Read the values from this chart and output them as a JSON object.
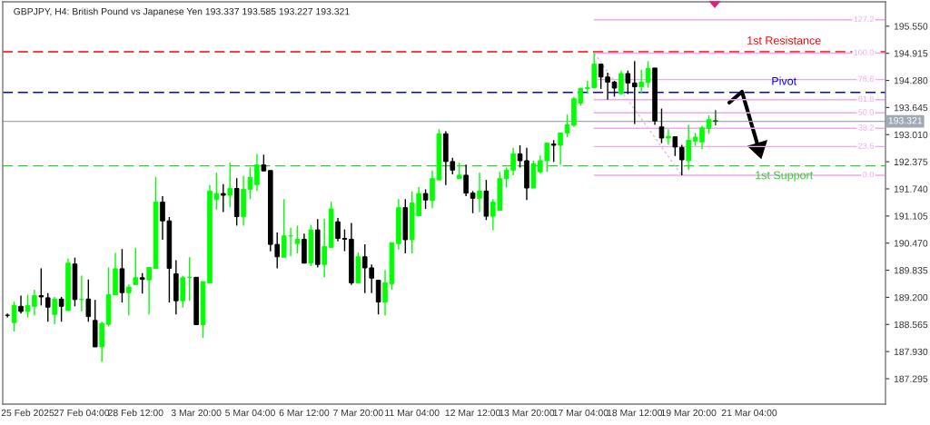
{
  "chart_data": {
    "type": "candlestick",
    "title": "GBPJPY, H4: British Pound vs Japanese Yen 193.337 193.585 193.227 193.321",
    "categories": [
      null,
      null,
      null,
      "25 Feb 2025",
      null,
      null,
      null,
      null,
      null,
      null,
      null,
      "27 Feb 04:00",
      null,
      null,
      null,
      null,
      null,
      null,
      null,
      "28 Feb 12:00",
      null,
      null,
      null,
      null,
      null,
      null,
      null,
      null,
      "3 Mar 20:00",
      null,
      null,
      null,
      null,
      null,
      null,
      null,
      "5 Mar 04:00",
      null,
      null,
      null,
      null,
      null,
      null,
      null,
      "6 Mar 12:00",
      null,
      null,
      null,
      null,
      null,
      null,
      null,
      "7 Mar 20:00",
      null,
      null,
      null,
      null,
      null,
      null,
      null,
      "11 Mar 04:00",
      null,
      null,
      null,
      null,
      null,
      null,
      null,
      null,
      "12 Mar 12:00",
      null,
      null,
      null,
      null,
      null,
      null,
      null,
      "13 Mar 20:00",
      null,
      null,
      null,
      null,
      null,
      null,
      null,
      "17 Mar 04:00",
      null,
      null,
      null,
      null,
      null,
      null,
      null,
      "18 Mar 12:00",
      null,
      null,
      null,
      null,
      null,
      null,
      null,
      "19 Mar 20:00",
      null,
      null,
      null,
      null,
      null,
      null,
      null,
      null,
      "21 Mar 04:00",
      null,
      null,
      null,
      null,
      null,
      null,
      null,
      null,
      null,
      null,
      null,
      null,
      null,
      null,
      null,
      null,
      null,
      null,
      null,
      null
    ],
    "ohlc": [
      [
        188.78,
        188.82,
        188.73,
        188.78
      ],
      [
        188.61,
        189.1,
        188.4,
        189.01
      ],
      [
        188.99,
        189.24,
        188.82,
        188.87
      ],
      [
        188.87,
        189.26,
        188.73,
        189.01
      ],
      [
        188.99,
        189.38,
        188.78,
        189.24
      ],
      [
        189.24,
        189.88,
        189.01,
        189.21
      ],
      [
        189.19,
        189.3,
        188.63,
        188.97
      ],
      [
        188.8,
        189.21,
        188.57,
        189.16
      ],
      [
        189.16,
        189.21,
        188.63,
        188.99
      ],
      [
        188.89,
        190.11,
        188.89,
        190.0
      ],
      [
        189.98,
        190.13,
        188.99,
        189.15
      ],
      [
        189.15,
        189.71,
        188.87,
        189.15
      ],
      [
        189.16,
        189.62,
        188.63,
        188.75
      ],
      [
        188.66,
        189.14,
        188.04,
        188.04
      ],
      [
        188.04,
        188.63,
        187.69,
        188.59
      ],
      [
        188.57,
        189.9,
        188.52,
        189.26
      ],
      [
        189.26,
        190.24,
        189.26,
        189.87
      ],
      [
        189.87,
        190.33,
        189.08,
        189.31
      ],
      [
        189.31,
        189.5,
        188.78,
        189.44
      ],
      [
        189.5,
        190.35,
        189.5,
        189.66
      ],
      [
        189.66,
        189.77,
        189.29,
        189.62
      ],
      [
        189.61,
        189.9,
        188.8,
        189.9
      ],
      [
        189.88,
        192.02,
        189.88,
        191.43
      ],
      [
        191.43,
        191.57,
        190.55,
        190.99
      ],
      [
        190.99,
        191.08,
        189.08,
        189.88
      ],
      [
        189.75,
        190.07,
        188.8,
        189.12
      ],
      [
        189.12,
        189.71,
        188.96,
        189.66
      ],
      [
        189.67,
        190.14,
        189.12,
        189.67
      ],
      [
        189.67,
        189.67,
        188.56,
        188.56
      ],
      [
        188.56,
        189.57,
        188.25,
        189.57
      ],
      [
        189.54,
        191.83,
        189.54,
        191.69
      ],
      [
        191.49,
        192.12,
        191.25,
        191.63
      ],
      [
        191.63,
        191.85,
        191.2,
        191.59
      ],
      [
        191.59,
        192.35,
        191.31,
        191.75
      ],
      [
        191.75,
        191.99,
        190.88,
        191.09
      ],
      [
        191.09,
        192.04,
        190.88,
        191.73
      ],
      [
        191.73,
        192.24,
        191.5,
        192.01
      ],
      [
        191.84,
        192.56,
        191.69,
        192.3
      ],
      [
        192.3,
        192.54,
        192.16,
        192.16
      ],
      [
        192.17,
        192.17,
        190.28,
        190.44
      ],
      [
        190.44,
        190.72,
        189.88,
        190.15
      ],
      [
        190.14,
        191.5,
        190.14,
        190.64
      ],
      [
        190.64,
        190.83,
        190.16,
        190.64
      ],
      [
        190.46,
        190.88,
        190.23,
        190.56
      ],
      [
        190.56,
        190.69,
        190.0,
        190.0
      ],
      [
        190.0,
        190.9,
        189.93,
        190.78
      ],
      [
        190.78,
        191.03,
        189.9,
        189.97
      ],
      [
        189.97,
        191.04,
        189.67,
        190.39
      ],
      [
        190.37,
        191.44,
        190.37,
        191.27
      ],
      [
        190.97,
        191.06,
        190.51,
        190.58
      ],
      [
        190.58,
        190.79,
        190.28,
        190.56
      ],
      [
        190.56,
        190.94,
        189.49,
        189.54
      ],
      [
        189.54,
        190.25,
        189.54,
        190.15
      ],
      [
        190.15,
        190.44,
        189.3,
        189.89
      ],
      [
        189.89,
        189.97,
        189.3,
        189.65
      ],
      [
        189.6,
        189.6,
        188.8,
        189.09
      ],
      [
        189.09,
        189.84,
        188.78,
        189.54
      ],
      [
        189.52,
        190.48,
        189.38,
        190.48
      ],
      [
        190.46,
        191.5,
        190.32,
        191.3
      ],
      [
        191.3,
        191.5,
        190.23,
        190.55
      ],
      [
        190.55,
        191.68,
        190.23,
        191.41
      ],
      [
        191.11,
        191.78,
        191.11,
        191.63
      ],
      [
        191.63,
        191.73,
        191.27,
        191.48
      ],
      [
        191.47,
        192.17,
        191.29,
        191.98
      ],
      [
        191.95,
        193.14,
        191.95,
        193.03
      ],
      [
        193.03,
        193.09,
        191.83,
        192.38
      ],
      [
        192.38,
        192.47,
        192.08,
        192.18
      ],
      [
        191.98,
        192.35,
        191.98,
        192.06
      ],
      [
        192.06,
        192.31,
        191.57,
        191.64
      ],
      [
        191.64,
        191.69,
        191.17,
        191.52
      ],
      [
        191.52,
        192.12,
        191.2,
        191.69
      ],
      [
        191.69,
        191.95,
        191.01,
        191.1
      ],
      [
        191.1,
        191.5,
        190.77,
        191.43
      ],
      [
        191.24,
        192.14,
        191.24,
        191.98
      ],
      [
        191.98,
        192.24,
        191.77,
        192.18
      ],
      [
        192.18,
        192.7,
        192.06,
        192.56
      ],
      [
        192.56,
        192.76,
        192.24,
        192.4
      ],
      [
        192.4,
        192.7,
        191.48,
        191.76
      ],
      [
        191.76,
        192.4,
        191.76,
        192.33
      ],
      [
        192.14,
        192.52,
        192.1,
        192.4
      ],
      [
        192.4,
        192.81,
        192.14,
        192.81
      ],
      [
        192.79,
        192.88,
        192.37,
        192.76
      ],
      [
        192.76,
        193.05,
        192.31,
        193.05
      ],
      [
        193.05,
        193.48,
        192.95,
        193.24
      ],
      [
        193.23,
        193.9,
        193.19,
        193.85
      ],
      [
        193.75,
        194.11,
        193.69,
        194.09
      ],
      [
        194.09,
        194.27,
        193.97,
        194.11
      ],
      [
        194.11,
        194.92,
        194.11,
        194.66
      ],
      [
        194.66,
        194.66,
        194.08,
        194.36
      ],
      [
        194.36,
        194.46,
        193.83,
        194.24
      ],
      [
        194.24,
        194.27,
        193.9,
        194.1
      ],
      [
        193.97,
        194.51,
        193.94,
        194.44
      ],
      [
        194.44,
        194.51,
        193.96,
        194.22
      ],
      [
        194.22,
        194.73,
        193.26,
        194.13
      ],
      [
        194.13,
        194.53,
        193.97,
        194.24
      ],
      [
        194.23,
        194.73,
        194.11,
        194.56
      ],
      [
        194.57,
        194.57,
        193.24,
        193.33
      ],
      [
        193.19,
        193.62,
        192.81,
        192.93
      ],
      [
        192.93,
        193.14,
        192.77,
        192.97
      ],
      [
        192.96,
        192.96,
        192.51,
        192.72
      ],
      [
        192.71,
        192.77,
        192.06,
        192.42
      ],
      [
        192.4,
        193.24,
        192.18,
        192.88
      ],
      [
        192.86,
        193.05,
        192.75,
        192.95
      ],
      [
        192.84,
        193.22,
        192.67,
        193.17
      ],
      [
        193.16,
        193.46,
        193.03,
        193.36
      ],
      [
        193.337,
        193.585,
        193.227,
        193.321
      ],
      null,
      null,
      null,
      null,
      null,
      null,
      null,
      null,
      null,
      null,
      null,
      null,
      null,
      null,
      null,
      null,
      null,
      null,
      null,
      null,
      null,
      null,
      null,
      null,
      null
    ],
    "colors": [
      "#000000",
      "#00ff00",
      "#000000",
      "#00ff00",
      "#00ff00",
      "#000000",
      "#000000",
      "#00ff00",
      "#000000",
      "#00ff00",
      "#000000",
      "#00ff00",
      "#000000",
      "#000000",
      "#00ff00",
      "#00ff00",
      "#00ff00",
      "#000000",
      "#00ff00",
      "#00ff00",
      "#000000",
      "#00ff00",
      "#00ff00",
      "#000000",
      "#000000",
      "#000000",
      "#00ff00",
      "#00ff00",
      "#000000",
      "#00ff00",
      "#00ff00",
      "#00ff00",
      "#000000",
      "#00ff00",
      "#000000",
      "#00ff00",
      "#00ff00",
      "#00ff00",
      "#000000",
      "#000000",
      "#000000",
      "#00ff00",
      "#00ff00",
      "#00ff00",
      "#000000",
      "#00ff00",
      "#000000",
      "#00ff00",
      "#00ff00",
      "#000000",
      "#000000",
      "#000000",
      "#00ff00",
      "#000000",
      "#000000",
      "#000000",
      "#00ff00",
      "#00ff00",
      "#00ff00",
      "#000000",
      "#00ff00",
      "#00ff00",
      "#000000",
      "#00ff00",
      "#00ff00",
      "#000000",
      "#000000",
      "#00ff00",
      "#000000",
      "#000000",
      "#00ff00",
      "#000000",
      "#00ff00",
      "#00ff00",
      "#00ff00",
      "#00ff00",
      "#000000",
      "#000000",
      "#00ff00",
      "#00ff00",
      "#00ff00",
      "#000000",
      "#00ff00",
      "#00ff00",
      "#00ff00",
      "#00ff00",
      "#00ff00",
      "#00ff00",
      "#000000",
      "#000000",
      "#000000",
      "#00ff00",
      "#000000",
      "#000000",
      "#00ff00",
      "#00ff00",
      "#000000",
      "#000000",
      "#00ff00",
      "#000000",
      "#000000",
      "#00ff00",
      "#00ff00",
      "#00ff00",
      "#00ff00",
      "#006400",
      null,
      null,
      null,
      null,
      null,
      null,
      null,
      null,
      null,
      null,
      null,
      null,
      null,
      null,
      null,
      null,
      null,
      null,
      null,
      null,
      null,
      null,
      null,
      null,
      null
    ],
    "series": [
      {
        "type": "line",
        "name": "127.2",
        "color": "#f0a8f0",
        "values": [
          null,
          null,
          null,
          null,
          null,
          null,
          null,
          null,
          null,
          null,
          null,
          null,
          null,
          null,
          null,
          null,
          null,
          null,
          null,
          null,
          null,
          null,
          null,
          null,
          null,
          null,
          null,
          null,
          null,
          null,
          null,
          null,
          null,
          null,
          null,
          null,
          null,
          null,
          null,
          null,
          null,
          null,
          null,
          null,
          null,
          null,
          null,
          null,
          null,
          null,
          null,
          null,
          null,
          null,
          null,
          null,
          null,
          null,
          null,
          null,
          null,
          null,
          null,
          null,
          null,
          null,
          null,
          null,
          null,
          null,
          null,
          null,
          null,
          null,
          null,
          null,
          null,
          null,
          null,
          null,
          null,
          null,
          null,
          null,
          null,
          null,
          null,
          195.7,
          195.7,
          195.7,
          195.7,
          195.7,
          195.7,
          195.7,
          195.7,
          195.7,
          195.7,
          195.7,
          195.7,
          195.7,
          195.7,
          195.7,
          195.7,
          195.7,
          195.7,
          195.7,
          195.7,
          195.7,
          195.7,
          195.7,
          195.7,
          195.7,
          195.7,
          195.7,
          195.7,
          195.7,
          195.7,
          195.7,
          195.7,
          195.7,
          195.7,
          195.7,
          195.7,
          195.7,
          195.7,
          195.7,
          195.7,
          195.7,
          195.7,
          195.7,
          195.7
        ]
      },
      {
        "type": "line",
        "name": "100.0",
        "color": "#f0a8f0",
        "values": [
          null,
          null,
          null,
          null,
          null,
          null,
          null,
          null,
          null,
          null,
          null,
          null,
          null,
          null,
          null,
          null,
          null,
          null,
          null,
          null,
          null,
          null,
          null,
          null,
          null,
          null,
          null,
          null,
          null,
          null,
          null,
          null,
          null,
          null,
          null,
          null,
          null,
          null,
          null,
          null,
          null,
          null,
          null,
          null,
          null,
          null,
          null,
          null,
          null,
          null,
          null,
          null,
          null,
          null,
          null,
          null,
          null,
          null,
          null,
          null,
          null,
          null,
          null,
          null,
          null,
          null,
          null,
          null,
          null,
          null,
          null,
          null,
          null,
          null,
          null,
          null,
          null,
          null,
          null,
          null,
          null,
          null,
          null,
          null,
          null,
          null,
          null,
          194.92,
          194.92,
          194.92,
          194.92,
          194.92,
          194.92,
          194.92,
          194.92,
          194.92,
          194.92,
          194.92,
          194.92,
          194.92,
          194.92,
          194.92,
          194.92,
          194.92,
          194.92,
          194.92,
          194.92,
          194.92,
          194.92,
          194.92,
          194.92,
          194.92,
          194.92,
          194.92,
          194.92,
          194.92,
          194.92,
          194.92,
          194.92,
          194.92,
          194.92,
          194.92,
          194.92,
          194.92,
          194.92,
          194.92,
          194.92,
          194.92,
          194.92,
          194.92,
          194.92
        ]
      },
      {
        "type": "line",
        "name": "78.6",
        "color": "#f0a8f0",
        "values": [
          null,
          null,
          null,
          null,
          null,
          null,
          null,
          null,
          null,
          null,
          null,
          null,
          null,
          null,
          null,
          null,
          null,
          null,
          null,
          null,
          null,
          null,
          null,
          null,
          null,
          null,
          null,
          null,
          null,
          null,
          null,
          null,
          null,
          null,
          null,
          null,
          null,
          null,
          null,
          null,
          null,
          null,
          null,
          null,
          null,
          null,
          null,
          null,
          null,
          null,
          null,
          null,
          null,
          null,
          null,
          null,
          null,
          null,
          null,
          null,
          null,
          null,
          null,
          null,
          null,
          null,
          null,
          null,
          null,
          null,
          null,
          null,
          null,
          null,
          null,
          null,
          null,
          null,
          null,
          null,
          null,
          null,
          null,
          null,
          null,
          null,
          null,
          194.3,
          194.3,
          194.3,
          194.3,
          194.3,
          194.3,
          194.3,
          194.3,
          194.3,
          194.3,
          194.3,
          194.3,
          194.3,
          194.3,
          194.3,
          194.3,
          194.3,
          194.3,
          194.3,
          194.3,
          194.3,
          194.3,
          194.3,
          194.3,
          194.3,
          194.3,
          194.3,
          194.3,
          194.3,
          194.3,
          194.3,
          194.3,
          194.3,
          194.3,
          194.3,
          194.3,
          194.3,
          194.3,
          194.3,
          194.3,
          194.3,
          194.3,
          194.3,
          194.3
        ]
      },
      {
        "type": "line",
        "name": "61.8",
        "color": "#f0a8f0",
        "values": [
          null,
          null,
          null,
          null,
          null,
          null,
          null,
          null,
          null,
          null,
          null,
          null,
          null,
          null,
          null,
          null,
          null,
          null,
          null,
          null,
          null,
          null,
          null,
          null,
          null,
          null,
          null,
          null,
          null,
          null,
          null,
          null,
          null,
          null,
          null,
          null,
          null,
          null,
          null,
          null,
          null,
          null,
          null,
          null,
          null,
          null,
          null,
          null,
          null,
          null,
          null,
          null,
          null,
          null,
          null,
          null,
          null,
          null,
          null,
          null,
          null,
          null,
          null,
          null,
          null,
          null,
          null,
          null,
          null,
          null,
          null,
          null,
          null,
          null,
          null,
          null,
          null,
          null,
          null,
          null,
          null,
          null,
          null,
          null,
          null,
          null,
          null,
          193.83,
          193.83,
          193.83,
          193.83,
          193.83,
          193.83,
          193.83,
          193.83,
          193.83,
          193.83,
          193.83,
          193.83,
          193.83,
          193.83,
          193.83,
          193.83,
          193.83,
          193.83,
          193.83,
          193.83,
          193.83,
          193.83,
          193.83,
          193.83,
          193.83,
          193.83,
          193.83,
          193.83,
          193.83,
          193.83,
          193.83,
          193.83,
          193.83,
          193.83,
          193.83,
          193.83,
          193.83,
          193.83,
          193.83,
          193.83,
          193.83,
          193.83,
          193.83,
          193.83
        ]
      },
      {
        "type": "line",
        "name": "50.0",
        "color": "#f0a8f0",
        "values": [
          null,
          null,
          null,
          null,
          null,
          null,
          null,
          null,
          null,
          null,
          null,
          null,
          null,
          null,
          null,
          null,
          null,
          null,
          null,
          null,
          null,
          null,
          null,
          null,
          null,
          null,
          null,
          null,
          null,
          null,
          null,
          null,
          null,
          null,
          null,
          null,
          null,
          null,
          null,
          null,
          null,
          null,
          null,
          null,
          null,
          null,
          null,
          null,
          null,
          null,
          null,
          null,
          null,
          null,
          null,
          null,
          null,
          null,
          null,
          null,
          null,
          null,
          null,
          null,
          null,
          null,
          null,
          null,
          null,
          null,
          null,
          null,
          null,
          null,
          null,
          null,
          null,
          null,
          null,
          null,
          null,
          null,
          null,
          null,
          null,
          null,
          null,
          193.52,
          193.52,
          193.52,
          193.52,
          193.52,
          193.52,
          193.52,
          193.52,
          193.52,
          193.52,
          193.52,
          193.52,
          193.52,
          193.52,
          193.52,
          193.52,
          193.52,
          193.52,
          193.52,
          193.52,
          193.52,
          193.52,
          193.52,
          193.52,
          193.52,
          193.52,
          193.52,
          193.52,
          193.52,
          193.52,
          193.52,
          193.52,
          193.52,
          193.52,
          193.52,
          193.52,
          193.52,
          193.52,
          193.52,
          193.52,
          193.52,
          193.52,
          193.52,
          193.52
        ]
      },
      {
        "type": "line",
        "name": "38.2",
        "color": "#f0a8f0",
        "values": [
          null,
          null,
          null,
          null,
          null,
          null,
          null,
          null,
          null,
          null,
          null,
          null,
          null,
          null,
          null,
          null,
          null,
          null,
          null,
          null,
          null,
          null,
          null,
          null,
          null,
          null,
          null,
          null,
          null,
          null,
          null,
          null,
          null,
          null,
          null,
          null,
          null,
          null,
          null,
          null,
          null,
          null,
          null,
          null,
          null,
          null,
          null,
          null,
          null,
          null,
          null,
          null,
          null,
          null,
          null,
          null,
          null,
          null,
          null,
          null,
          null,
          null,
          null,
          null,
          null,
          null,
          null,
          null,
          null,
          null,
          null,
          null,
          null,
          null,
          null,
          null,
          null,
          null,
          null,
          null,
          null,
          null,
          null,
          null,
          null,
          null,
          null,
          193.16,
          193.16,
          193.16,
          193.16,
          193.16,
          193.16,
          193.16,
          193.16,
          193.16,
          193.16,
          193.16,
          193.16,
          193.16,
          193.16,
          193.16,
          193.16,
          193.16,
          193.16,
          193.16,
          193.16,
          193.16,
          193.16,
          193.16,
          193.16,
          193.16,
          193.16,
          193.16,
          193.16,
          193.16,
          193.16,
          193.16,
          193.16,
          193.16,
          193.16,
          193.16,
          193.16,
          193.16,
          193.16,
          193.16,
          193.16,
          193.16,
          193.16,
          193.16,
          193.16
        ]
      },
      {
        "type": "line",
        "name": "23.6",
        "color": "#f0a8f0",
        "values": [
          null,
          null,
          null,
          null,
          null,
          null,
          null,
          null,
          null,
          null,
          null,
          null,
          null,
          null,
          null,
          null,
          null,
          null,
          null,
          null,
          null,
          null,
          null,
          null,
          null,
          null,
          null,
          null,
          null,
          null,
          null,
          null,
          null,
          null,
          null,
          null,
          null,
          null,
          null,
          null,
          null,
          null,
          null,
          null,
          null,
          null,
          null,
          null,
          null,
          null,
          null,
          null,
          null,
          null,
          null,
          null,
          null,
          null,
          null,
          null,
          null,
          null,
          null,
          null,
          null,
          null,
          null,
          null,
          null,
          null,
          null,
          null,
          null,
          null,
          null,
          null,
          null,
          null,
          null,
          null,
          null,
          null,
          null,
          null,
          null,
          null,
          null,
          192.73,
          192.73,
          192.73,
          192.73,
          192.73,
          192.73,
          192.73,
          192.73,
          192.73,
          192.73,
          192.73,
          192.73,
          192.73,
          192.73,
          192.73,
          192.73,
          192.73,
          192.73,
          192.73,
          192.73,
          192.73,
          192.73,
          192.73,
          192.73,
          192.73,
          192.73,
          192.73,
          192.73,
          192.73,
          192.73,
          192.73,
          192.73,
          192.73,
          192.73,
          192.73,
          192.73,
          192.73,
          192.73,
          192.73,
          192.73,
          192.73,
          192.73,
          192.73,
          192.73
        ]
      },
      {
        "type": "line",
        "name": "0.0",
        "color": "#f0a8f0",
        "values": [
          null,
          null,
          null,
          null,
          null,
          null,
          null,
          null,
          null,
          null,
          null,
          null,
          null,
          null,
          null,
          null,
          null,
          null,
          null,
          null,
          null,
          null,
          null,
          null,
          null,
          null,
          null,
          null,
          null,
          null,
          null,
          null,
          null,
          null,
          null,
          null,
          null,
          null,
          null,
          null,
          null,
          null,
          null,
          null,
          null,
          null,
          null,
          null,
          null,
          null,
          null,
          null,
          null,
          null,
          null,
          null,
          null,
          null,
          null,
          null,
          null,
          null,
          null,
          null,
          null,
          null,
          null,
          null,
          null,
          null,
          null,
          null,
          null,
          null,
          null,
          null,
          null,
          null,
          null,
          null,
          null,
          null,
          null,
          null,
          null,
          null,
          null,
          192.06,
          192.06,
          192.06,
          192.06,
          192.06,
          192.06,
          192.06,
          192.06,
          192.06,
          192.06,
          192.06,
          192.06,
          192.06,
          192.06,
          192.06,
          192.06,
          192.06,
          192.06,
          192.06,
          192.06,
          192.06,
          192.06,
          192.06,
          192.06,
          192.06,
          192.06,
          192.06,
          192.06,
          192.06,
          192.06,
          192.06,
          192.06,
          192.06,
          192.06,
          192.06,
          192.06,
          192.06,
          192.06,
          192.06,
          192.06,
          192.06,
          192.06,
          192.06,
          192.06
        ]
      },
      {
        "type": "line",
        "color": "#e8b8e8",
        "line_style": "dotted",
        "values": [
          null,
          null,
          null,
          null,
          null,
          null,
          null,
          null,
          null,
          null,
          null,
          null,
          null,
          null,
          null,
          null,
          null,
          null,
          null,
          null,
          null,
          null,
          null,
          null,
          null,
          null,
          null,
          null,
          null,
          null,
          null,
          null,
          null,
          null,
          null,
          null,
          null,
          null,
          null,
          null,
          null,
          null,
          null,
          null,
          null,
          null,
          null,
          null,
          null,
          null,
          null,
          null,
          null,
          null,
          null,
          null,
          null,
          null,
          null,
          null,
          null,
          null,
          null,
          null,
          null,
          null,
          null,
          null,
          null,
          null,
          null,
          null,
          null,
          null,
          null,
          null,
          null,
          null,
          null,
          null,
          null,
          null,
          null,
          null,
          null,
          null,
          null,
          194.92,
          null,
          null,
          null,
          null,
          null,
          null,
          null,
          null,
          null,
          null,
          null,
          null,
          192.06,
          null,
          null,
          null,
          null,
          null,
          null,
          null,
          null,
          null,
          null,
          null,
          null,
          null,
          null,
          null,
          null,
          null,
          null,
          null,
          null,
          null,
          null,
          null,
          null,
          null,
          null,
          null,
          null,
          null,
          null
        ]
      }
    ],
    "ref_lines": [
      {
        "axis": "y",
        "value": 194.95,
        "label": "1st Resistance",
        "color": "#ff0000",
        "line_style": "dashed"
      },
      {
        "axis": "y",
        "value": 194.0,
        "label": "Pivot",
        "color": "#0000ff",
        "line_style": "dashed"
      },
      {
        "axis": "y",
        "value": 192.28,
        "label": "1st Support",
        "color": "#33cc33",
        "line_style": "dashed"
      },
      {
        "axis": "y",
        "value": 193.321,
        "label": "193.321",
        "color": "#a0aab4",
        "line_style": "solid"
      }
    ],
    "ylim": [
      186.7,
      196.12
    ],
    "yticks": [
      {
        "value": 187.295,
        "label": "187.295"
      },
      {
        "value": 187.93,
        "label": "187.930"
      },
      {
        "value": 188.565,
        "label": "188.565"
      },
      {
        "value": 189.2,
        "label": "189.200"
      },
      {
        "value": 189.835,
        "label": "189.835"
      },
      {
        "value": 190.47,
        "label": "190.470"
      },
      {
        "value": 191.105,
        "label": "191.105"
      },
      {
        "value": 191.74,
        "label": "191.740"
      },
      {
        "value": 192.375,
        "label": "192.375"
      },
      {
        "value": 193.01,
        "label": "193.010"
      },
      {
        "value": 193.645,
        "label": "193.645"
      },
      {
        "value": 194.28,
        "label": "194.280"
      },
      {
        "value": 194.915,
        "label": "194.915"
      },
      {
        "value": 195.55,
        "label": "195.550"
      }
    ]
  }
}
